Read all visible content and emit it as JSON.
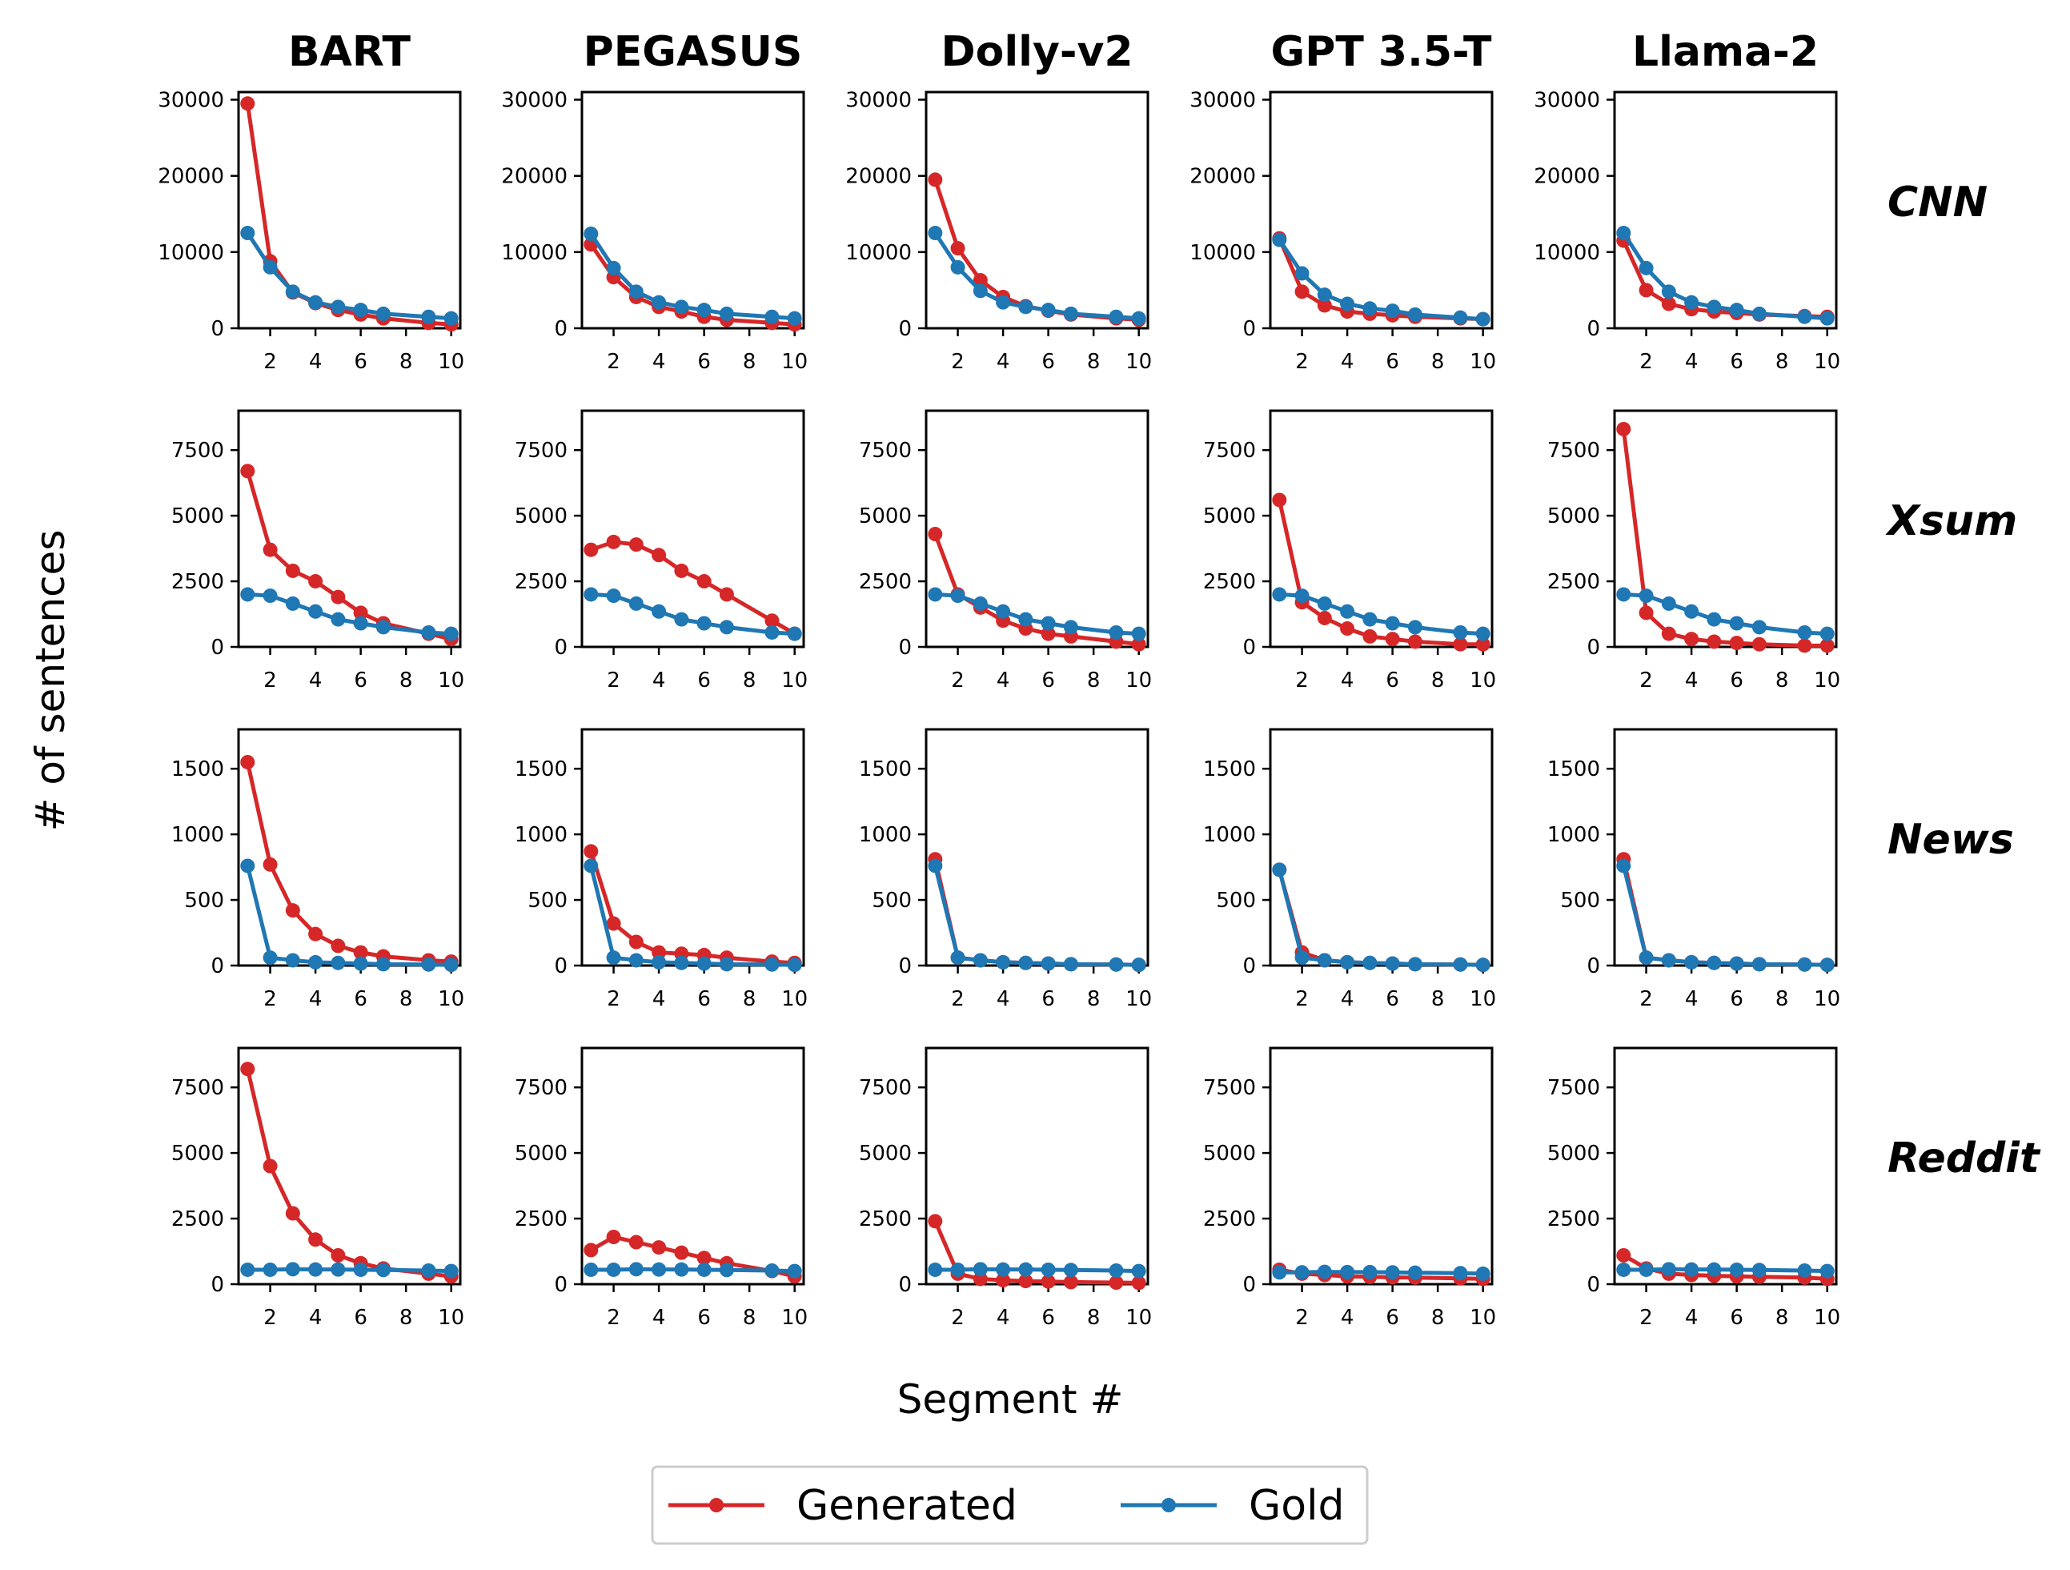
{
  "chart_data": {
    "type": "line",
    "ylabel": "# of sentences",
    "xlabel": "Segment #",
    "models": [
      "BART",
      "PEGASUS",
      "Dolly-v2",
      "GPT 3.5-T",
      "Llama-2"
    ],
    "datasets": [
      "CNN",
      "Xsum",
      "News",
      "Reddit"
    ],
    "x": [
      1,
      2,
      3,
      4,
      5,
      6,
      7,
      9,
      10
    ],
    "xticks": [
      2,
      4,
      6,
      8,
      10
    ],
    "xlim": [
      0.6,
      10.4
    ],
    "ylims": [
      [
        0,
        31000
      ],
      [
        0,
        9000
      ],
      [
        0,
        1800
      ],
      [
        0,
        9000
      ]
    ],
    "yticks": [
      [
        0,
        10000,
        20000,
        30000
      ],
      [
        0,
        2500,
        5000,
        7500
      ],
      [
        0,
        500,
        1000,
        1500
      ],
      [
        0,
        2500,
        5000,
        7500
      ]
    ],
    "legend": [
      {
        "name": "Generated",
        "color": "#d62728"
      },
      {
        "name": "Gold",
        "color": "#1f77b4"
      }
    ],
    "panels": [
      [
        {
          "generated": [
            29500,
            8800,
            4700,
            3300,
            2400,
            1800,
            1300,
            700,
            500
          ],
          "gold": [
            12500,
            8000,
            4800,
            3400,
            2800,
            2400,
            1900,
            1500,
            1300
          ]
        },
        {
          "generated": [
            11000,
            6700,
            4100,
            2800,
            2200,
            1500,
            1100,
            700,
            500
          ],
          "gold": [
            12400,
            7900,
            4800,
            3400,
            2800,
            2400,
            1900,
            1500,
            1300
          ]
        },
        {
          "generated": [
            19500,
            10500,
            6300,
            4100,
            2900,
            2300,
            1800,
            1300,
            1100
          ],
          "gold": [
            12500,
            8000,
            4900,
            3400,
            2800,
            2400,
            1900,
            1500,
            1300
          ]
        },
        {
          "generated": [
            11800,
            4800,
            3000,
            2200,
            1900,
            1700,
            1500,
            1300,
            1200
          ],
          "gold": [
            11600,
            7200,
            4400,
            3200,
            2600,
            2300,
            1800,
            1400,
            1200
          ]
        },
        {
          "generated": [
            11500,
            5000,
            3200,
            2500,
            2200,
            2000,
            1800,
            1600,
            1500
          ],
          "gold": [
            12500,
            7900,
            4800,
            3400,
            2800,
            2400,
            1900,
            1500,
            1300
          ]
        }
      ],
      [
        {
          "generated": [
            6700,
            3700,
            2900,
            2500,
            1900,
            1300,
            900,
            500,
            300
          ],
          "gold": [
            2000,
            1950,
            1650,
            1350,
            1050,
            900,
            750,
            550,
            500
          ]
        },
        {
          "generated": [
            3700,
            4000,
            3900,
            3500,
            2900,
            2500,
            2000,
            1000,
            500
          ],
          "gold": [
            2000,
            1950,
            1650,
            1350,
            1050,
            900,
            750,
            550,
            500
          ]
        },
        {
          "generated": [
            4300,
            2000,
            1500,
            1000,
            700,
            500,
            400,
            200,
            100
          ],
          "gold": [
            2000,
            1950,
            1650,
            1350,
            1050,
            900,
            750,
            550,
            500
          ]
        },
        {
          "generated": [
            5600,
            1700,
            1100,
            700,
            400,
            300,
            200,
            100,
            100
          ],
          "gold": [
            2000,
            1950,
            1650,
            1350,
            1050,
            900,
            750,
            550,
            500
          ]
        },
        {
          "generated": [
            8300,
            1300,
            500,
            300,
            200,
            150,
            100,
            50,
            50
          ],
          "gold": [
            2000,
            1950,
            1650,
            1350,
            1050,
            900,
            750,
            550,
            500
          ]
        }
      ],
      [
        {
          "generated": [
            1550,
            770,
            420,
            240,
            150,
            100,
            70,
            40,
            30
          ],
          "gold": [
            760,
            60,
            40,
            25,
            20,
            15,
            10,
            8,
            5
          ]
        },
        {
          "generated": [
            870,
            320,
            180,
            100,
            90,
            80,
            60,
            30,
            20
          ],
          "gold": [
            760,
            60,
            40,
            25,
            20,
            15,
            10,
            8,
            5
          ]
        },
        {
          "generated": [
            810,
            60,
            40,
            25,
            20,
            15,
            10,
            8,
            5
          ],
          "gold": [
            760,
            60,
            40,
            25,
            20,
            15,
            10,
            8,
            5
          ]
        },
        {
          "generated": [
            730,
            100,
            40,
            25,
            20,
            15,
            10,
            8,
            5
          ],
          "gold": [
            730,
            60,
            40,
            25,
            20,
            15,
            10,
            8,
            5
          ]
        },
        {
          "generated": [
            810,
            60,
            40,
            25,
            20,
            15,
            10,
            8,
            5
          ],
          "gold": [
            760,
            60,
            40,
            25,
            20,
            15,
            10,
            8,
            5
          ]
        }
      ],
      [
        {
          "generated": [
            8200,
            4500,
            2700,
            1700,
            1100,
            800,
            600,
            400,
            300
          ],
          "gold": [
            550,
            550,
            570,
            560,
            560,
            550,
            540,
            520,
            500
          ]
        },
        {
          "generated": [
            1300,
            1800,
            1600,
            1400,
            1200,
            1000,
            800,
            500,
            300
          ],
          "gold": [
            550,
            550,
            570,
            560,
            560,
            550,
            540,
            520,
            500
          ]
        },
        {
          "generated": [
            2400,
            400,
            200,
            150,
            120,
            100,
            80,
            60,
            50
          ],
          "gold": [
            550,
            550,
            570,
            560,
            560,
            550,
            540,
            520,
            500
          ]
        },
        {
          "generated": [
            550,
            400,
            350,
            300,
            280,
            260,
            250,
            220,
            200
          ],
          "gold": [
            450,
            450,
            470,
            460,
            460,
            450,
            440,
            420,
            400
          ]
        },
        {
          "generated": [
            1100,
            600,
            400,
            350,
            320,
            300,
            280,
            250,
            200
          ],
          "gold": [
            550,
            550,
            570,
            560,
            560,
            550,
            540,
            520,
            500
          ]
        }
      ]
    ]
  }
}
